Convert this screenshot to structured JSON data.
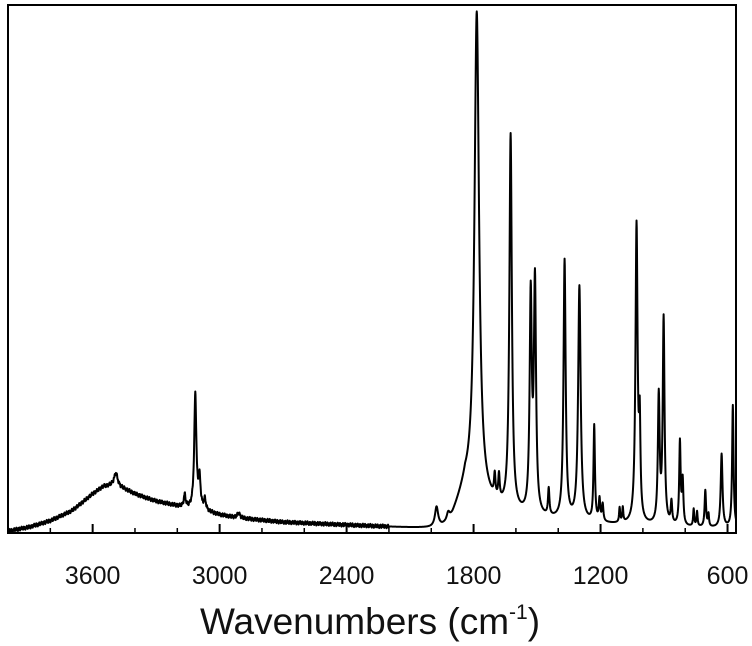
{
  "chart_data": {
    "type": "line",
    "title": "",
    "xlabel_main": "Wavenumbers (cm",
    "xlabel_sup": "-1",
    "xlabel_close": ")",
    "ylabel": "",
    "xlim": [
      4000,
      560
    ],
    "ylim": [
      0,
      1.08
    ],
    "x_reversed": true,
    "grid": false,
    "legend": "none",
    "line_color": "#000000",
    "tick_labels": [
      "3600",
      "3000",
      "2400",
      "1800",
      "1200",
      "600"
    ],
    "major_ticks": [
      3600,
      3000,
      2400,
      1800,
      1200,
      600
    ],
    "minor_ticks": [
      3800,
      3400,
      3200,
      2800,
      2600,
      2200,
      2000,
      1600,
      1400,
      1000,
      800
    ],
    "baseline": [
      [
        4000,
        0.004
      ],
      [
        3900,
        0.012
      ],
      [
        3800,
        0.025
      ],
      [
        3700,
        0.045
      ],
      [
        3650,
        0.062
      ],
      [
        3600,
        0.08
      ],
      [
        3550,
        0.095
      ],
      [
        3500,
        0.098
      ],
      [
        3450,
        0.09
      ],
      [
        3400,
        0.08
      ],
      [
        3350,
        0.072
      ],
      [
        3300,
        0.065
      ],
      [
        3250,
        0.06
      ],
      [
        3200,
        0.055
      ],
      [
        3150,
        0.05
      ],
      [
        3100,
        0.046
      ],
      [
        3050,
        0.042
      ],
      [
        3000,
        0.037
      ],
      [
        2950,
        0.033
      ],
      [
        2900,
        0.03
      ],
      [
        2800,
        0.026
      ],
      [
        2700,
        0.022
      ],
      [
        2600,
        0.02
      ],
      [
        2500,
        0.018
      ],
      [
        2400,
        0.016
      ],
      [
        2300,
        0.014
      ],
      [
        2200,
        0.012
      ],
      [
        2100,
        0.01
      ],
      [
        2000,
        0.008
      ],
      [
        1950,
        0.01
      ],
      [
        1920,
        0.016
      ],
      [
        1900,
        0.03
      ],
      [
        1880,
        0.05
      ],
      [
        1860,
        0.07
      ],
      [
        1840,
        0.09
      ],
      [
        1700,
        0.05
      ],
      [
        1650,
        0.04
      ],
      [
        1600,
        0.035
      ],
      [
        1550,
        0.03
      ],
      [
        1500,
        0.028
      ],
      [
        1450,
        0.026
      ],
      [
        1400,
        0.024
      ],
      [
        1350,
        0.022
      ],
      [
        1300,
        0.02
      ],
      [
        1250,
        0.019
      ],
      [
        1200,
        0.018
      ],
      [
        1150,
        0.017
      ],
      [
        1100,
        0.016
      ],
      [
        1050,
        0.015
      ],
      [
        1000,
        0.014
      ],
      [
        950,
        0.013
      ],
      [
        900,
        0.012
      ],
      [
        850,
        0.012
      ],
      [
        800,
        0.011
      ],
      [
        750,
        0.011
      ],
      [
        700,
        0.01
      ],
      [
        650,
        0.01
      ],
      [
        600,
        0.01
      ],
      [
        560,
        0.01
      ]
    ],
    "peaks": [
      {
        "x": 3490,
        "height": 0.026,
        "width": 10
      },
      {
        "x": 3165,
        "height": 0.025,
        "width": 5
      },
      {
        "x": 3115,
        "height": 0.235,
        "width": 6
      },
      {
        "x": 3095,
        "height": 0.06,
        "width": 6
      },
      {
        "x": 3070,
        "height": 0.022,
        "width": 6
      },
      {
        "x": 2910,
        "height": 0.01,
        "width": 8
      },
      {
        "x": 1975,
        "height": 0.04,
        "width": 9
      },
      {
        "x": 1920,
        "height": 0.018,
        "width": 8
      },
      {
        "x": 1785,
        "height": 0.99,
        "width": 13
      },
      {
        "x": 1700,
        "height": 0.045,
        "width": 4
      },
      {
        "x": 1680,
        "height": 0.05,
        "width": 4
      },
      {
        "x": 1625,
        "height": 0.77,
        "width": 7
      },
      {
        "x": 1530,
        "height": 0.44,
        "width": 6
      },
      {
        "x": 1510,
        "height": 0.47,
        "width": 6
      },
      {
        "x": 1445,
        "height": 0.055,
        "width": 4
      },
      {
        "x": 1370,
        "height": 0.53,
        "width": 6
      },
      {
        "x": 1300,
        "height": 0.48,
        "width": 7
      },
      {
        "x": 1230,
        "height": 0.195,
        "width": 4
      },
      {
        "x": 1205,
        "height": 0.045,
        "width": 4
      },
      {
        "x": 1190,
        "height": 0.035,
        "width": 4
      },
      {
        "x": 1110,
        "height": 0.03,
        "width": 3
      },
      {
        "x": 1095,
        "height": 0.03,
        "width": 3
      },
      {
        "x": 1030,
        "height": 0.61,
        "width": 6
      },
      {
        "x": 1015,
        "height": 0.18,
        "width": 4
      },
      {
        "x": 925,
        "height": 0.26,
        "width": 5
      },
      {
        "x": 902,
        "height": 0.42,
        "width": 5
      },
      {
        "x": 865,
        "height": 0.045,
        "width": 4
      },
      {
        "x": 825,
        "height": 0.17,
        "width": 4
      },
      {
        "x": 812,
        "height": 0.09,
        "width": 4
      },
      {
        "x": 760,
        "height": 0.035,
        "width": 3
      },
      {
        "x": 744,
        "height": 0.03,
        "width": 3
      },
      {
        "x": 705,
        "height": 0.075,
        "width": 4
      },
      {
        "x": 690,
        "height": 0.025,
        "width": 3
      },
      {
        "x": 628,
        "height": 0.15,
        "width": 5
      },
      {
        "x": 575,
        "height": 0.25,
        "width": 4
      }
    ]
  }
}
